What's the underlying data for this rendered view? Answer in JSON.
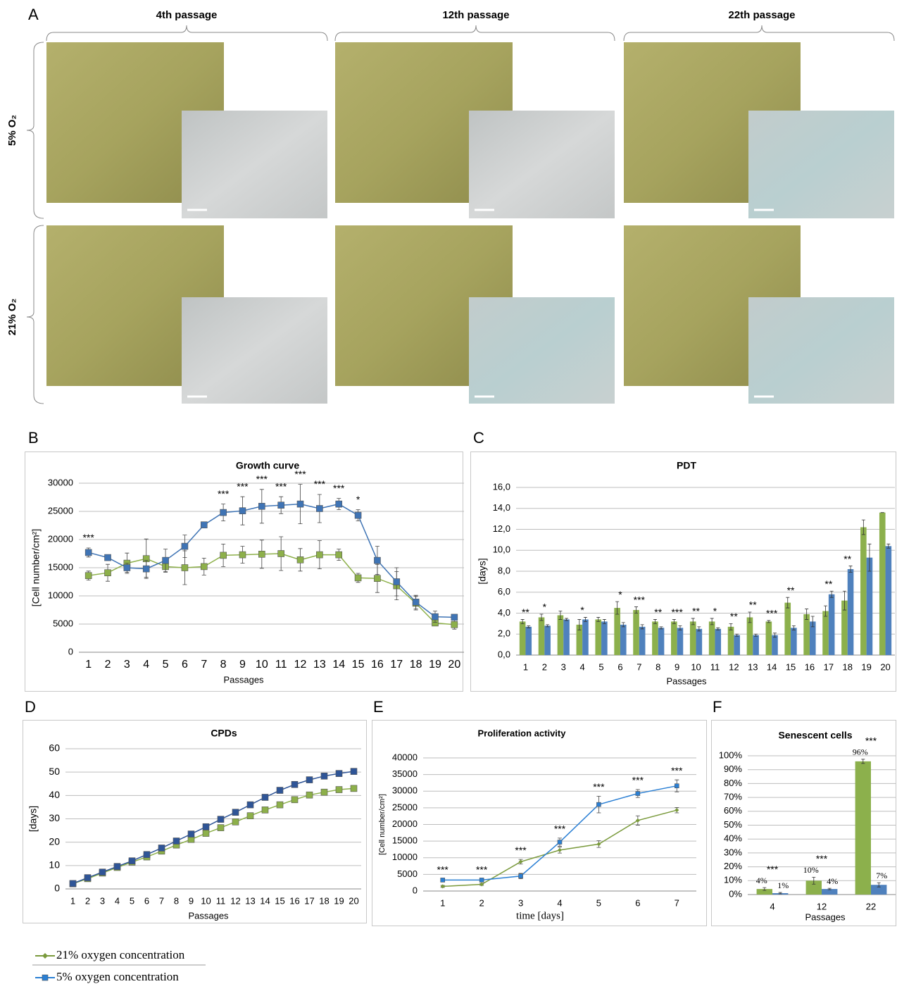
{
  "panel_labels": [
    "A",
    "B",
    "C",
    "D",
    "E",
    "F"
  ],
  "micrographs": {
    "columns": [
      "4th passage",
      "12th passage",
      "22th passage"
    ],
    "rows": [
      "5% O₂",
      "21% O₂"
    ]
  },
  "legend": [
    {
      "name": "21% oxygen concentration",
      "color": "#7a9a3c",
      "marker": "diamond"
    },
    {
      "name": "5% oxygen concentration",
      "color": "#2a7fd4",
      "marker": "square"
    }
  ],
  "chart_data": [
    {
      "type": "line",
      "title": "Growth curve",
      "x_label": "Passages",
      "y_label": "[Cell number/cm²]",
      "categories": [
        "1",
        "2",
        "3",
        "4",
        "5",
        "6",
        "7",
        "8",
        "9",
        "10",
        "11",
        "12",
        "13",
        "14",
        "15",
        "16",
        "17",
        "18",
        "19",
        "20"
      ],
      "series": [
        {
          "color": "#8db04a",
          "marker": "square",
          "values": [
            13600,
            14100,
            15800,
            16600,
            15200,
            15000,
            15200,
            17200,
            17300,
            17400,
            17500,
            16400,
            17300,
            17300,
            13200,
            13100,
            11800,
            8700,
            5200,
            4900
          ],
          "errors": [
            800,
            1500,
            1800,
            3500,
            1000,
            3000,
            1500,
            2000,
            1500,
            2500,
            3000,
            2000,
            2500,
            1000,
            800,
            2500,
            2500,
            1200,
            500,
            800
          ]
        },
        {
          "color": "#3f74b5",
          "marker": "square",
          "values": [
            17700,
            16800,
            15000,
            14800,
            16300,
            18800,
            22600,
            24800,
            25100,
            25900,
            26100,
            26300,
            25500,
            26300,
            24300,
            16300,
            12500,
            8900,
            6300,
            6200
          ],
          "errors": [
            800,
            300,
            800,
            1500,
            2000,
            2000,
            300,
            1500,
            2500,
            3000,
            1500,
            3500,
            2500,
            1000,
            1000,
            2500,
            2500,
            1200,
            1000,
            300
          ]
        }
      ],
      "significance": [
        "***",
        null,
        null,
        null,
        null,
        null,
        null,
        "***",
        "***",
        "***",
        "***",
        "***",
        "***",
        "***",
        "*",
        null,
        null,
        null,
        null,
        null
      ],
      "ylim": [
        0,
        30000
      ],
      "yticks": [
        0,
        5000,
        10000,
        15000,
        20000,
        25000,
        30000
      ],
      "grid": true
    },
    {
      "type": "bar",
      "title": "PDT",
      "x_label": "Passages",
      "y_label": "[days]",
      "categories": [
        "1",
        "2",
        "3",
        "4",
        "5",
        "6",
        "7",
        "8",
        "9",
        "10",
        "11",
        "12",
        "13",
        "14",
        "15",
        "16",
        "17",
        "18",
        "19",
        "20"
      ],
      "series": [
        {
          "color": "#8cb04c",
          "values": [
            3.2,
            3.6,
            3.8,
            2.9,
            3.4,
            4.5,
            4.3,
            3.2,
            3.2,
            3.2,
            3.2,
            2.7,
            3.6,
            3.2,
            5.0,
            3.9,
            4.2,
            5.2,
            12.2,
            13.6
          ],
          "errors": [
            0.2,
            0.3,
            0.4,
            0.5,
            0.2,
            0.6,
            0.3,
            0.2,
            0.2,
            0.3,
            0.3,
            0.3,
            0.5,
            0.1,
            0.5,
            0.5,
            0.5,
            0.9,
            0.7,
            0
          ]
        },
        {
          "color": "#4f81bd",
          "values": [
            2.7,
            2.8,
            3.4,
            3.4,
            3.2,
            2.9,
            2.7,
            2.6,
            2.6,
            2.5,
            2.5,
            1.9,
            1.9,
            1.9,
            2.6,
            3.2,
            5.8,
            8.2,
            9.3,
            10.4
          ],
          "errors": [
            0.1,
            0.1,
            0.1,
            0.2,
            0.2,
            0.2,
            0.2,
            0.1,
            0.2,
            0.2,
            0.1,
            0.1,
            0.1,
            0.2,
            0.2,
            0.5,
            0.3,
            0.3,
            1.3,
            0.2
          ]
        }
      ],
      "significance": [
        "**",
        "*",
        null,
        "*",
        null,
        "*",
        "***",
        "**",
        "***",
        "**",
        "*",
        "**",
        "**",
        "***",
        "**",
        null,
        "**",
        "**",
        null,
        null
      ],
      "ylim": [
        0,
        16
      ],
      "yticks": [
        {
          "value": 0,
          "label": "0,0"
        },
        {
          "value": 2,
          "label": "2,0"
        },
        {
          "value": 4,
          "label": "4,0"
        },
        {
          "value": 6,
          "label": "6,0"
        },
        {
          "value": 8,
          "label": "8,0"
        },
        {
          "value": 10,
          "label": "10,0"
        },
        {
          "value": 12,
          "label": "12,0"
        },
        {
          "value": 14,
          "label": "14,0"
        },
        {
          "value": 16,
          "label": "16,0"
        }
      ],
      "grid": true
    },
    {
      "type": "line",
      "title": "CPDs",
      "x_label": "Passages",
      "y_label": "[days]",
      "categories": [
        "1",
        "2",
        "3",
        "4",
        "5",
        "6",
        "7",
        "8",
        "9",
        "10",
        "11",
        "12",
        "13",
        "14",
        "15",
        "16",
        "17",
        "18",
        "19",
        "20"
      ],
      "series": [
        {
          "color": "#8db04a",
          "marker": "square",
          "values": [
            2.2,
            4.4,
            6.8,
            9.2,
            11.5,
            13.7,
            16.2,
            18.8,
            21.2,
            23.8,
            26.2,
            28.7,
            31.3,
            33.8,
            36,
            38.2,
            40.2,
            41.4,
            42.5,
            43
          ]
        },
        {
          "color": "#2f5597",
          "marker": "square",
          "values": [
            2.3,
            4.8,
            7.2,
            9.6,
            12,
            14.7,
            17.5,
            20.5,
            23.5,
            26.6,
            29.8,
            32.8,
            36,
            39.2,
            42.2,
            44.7,
            46.7,
            48.3,
            49.4,
            50.3
          ]
        }
      ],
      "ylim": [
        0,
        60
      ],
      "yticks": [
        0,
        10,
        20,
        30,
        40,
        50,
        60
      ],
      "grid": true
    },
    {
      "type": "line",
      "title": "Proliferation activity",
      "x_label": "time [days]",
      "y_label": "[Cell number/cm²]",
      "categories": [
        "1",
        "2",
        "3",
        "4",
        "5",
        "6",
        "7"
      ],
      "series": [
        {
          "color": "#7a9a3c",
          "marker": "diamond",
          "values": [
            1400,
            2000,
            8800,
            12300,
            14100,
            21200,
            24300
          ],
          "errors": [
            300,
            300,
            700,
            900,
            1000,
            1400,
            800
          ]
        },
        {
          "color": "#2a7fd4",
          "marker": "square",
          "values": [
            3300,
            3300,
            4500,
            14700,
            26000,
            29300,
            31600
          ],
          "errors": [
            300,
            300,
            800,
            1200,
            2500,
            1200,
            1800
          ]
        }
      ],
      "significance": [
        "***",
        "***",
        "***",
        "***",
        "***",
        "***",
        "***"
      ],
      "ylim": [
        0,
        40000
      ],
      "yticks": [
        0,
        5000,
        10000,
        15000,
        20000,
        25000,
        30000,
        35000,
        40000
      ],
      "grid": true
    },
    {
      "type": "bar",
      "title": "Senescent cells",
      "x_label": "Passages",
      "categories": [
        "4",
        "12",
        "22"
      ],
      "series": [
        {
          "color": "#8cb04c",
          "values": [
            4,
            10,
            96
          ],
          "value_labels": [
            "4%",
            "10%",
            "96%"
          ],
          "errors": [
            1,
            2.5,
            1.5
          ]
        },
        {
          "color": "#4f81bd",
          "values": [
            1,
            4,
            7
          ],
          "value_labels": [
            "1%",
            "4%",
            "7%"
          ],
          "errors": [
            0.5,
            0.5,
            1.5
          ]
        }
      ],
      "significance": [
        "***",
        "***",
        "***"
      ],
      "ylim": [
        0,
        100
      ],
      "yticks": [
        {
          "value": 0,
          "label": "0%"
        },
        {
          "value": 10,
          "label": "10%"
        },
        {
          "value": 20,
          "label": "20%"
        },
        {
          "value": 30,
          "label": "30%"
        },
        {
          "value": 40,
          "label": "40%"
        },
        {
          "value": 50,
          "label": "50%"
        },
        {
          "value": 60,
          "label": "60%"
        },
        {
          "value": 70,
          "label": "70%"
        },
        {
          "value": 80,
          "label": "80%"
        },
        {
          "value": 90,
          "label": "90%"
        },
        {
          "value": 100,
          "label": "100%"
        }
      ],
      "grid": true
    }
  ]
}
